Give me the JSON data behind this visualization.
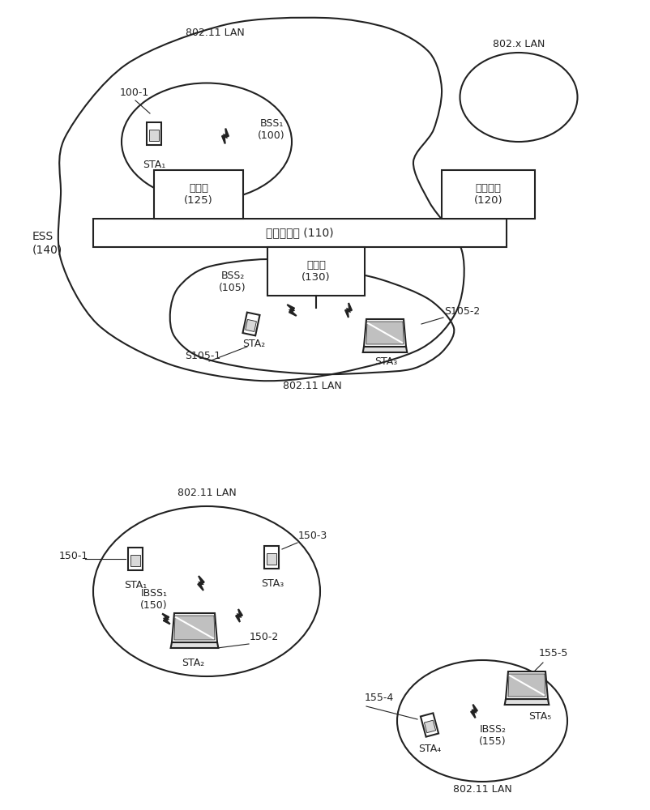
{
  "bg_color": "#ffffff",
  "line_color": "#222222",
  "fig_width": 8.03,
  "fig_height": 10.0,
  "top_diagram": {
    "ess_label": "ESS\n(140)",
    "bss1_label": "BSS₁\n(100)",
    "bss2_label": "BSS₂\n(105)",
    "ap1_label": "接入点\n(125)",
    "ap2_label": "接入点\n(130)",
    "portal_label": "入口站点\n(120)",
    "ds_label": "分布式系统 (110)",
    "lan1_label": "802.11 LAN",
    "lan2_label": "802.11 LAN",
    "lanx_label": "802.x LAN",
    "sta1_label": "STA₁",
    "sta2_label": "STA₂",
    "sta3_label": "STA₃",
    "ref100_1": "100-1",
    "ref_s1051": "S105-1",
    "ref_s1052": "S105-2"
  },
  "bottom_diagram": {
    "ibss1_label": "IBSS₁\n(150)",
    "ibss2_label": "IBSS₂\n(155)",
    "lan1_label": "802.11 LAN",
    "lan2_label": "802.11 LAN",
    "sta1_label": "STA₁",
    "sta2_label": "STA₂",
    "sta3_label": "STA₃",
    "sta4_label": "STA₄",
    "sta5_label": "STA₅",
    "ref150_1": "150-1",
    "ref150_2": "150-2",
    "ref150_3": "150-3",
    "ref155_4": "155-4",
    "ref155_5": "155-5"
  }
}
